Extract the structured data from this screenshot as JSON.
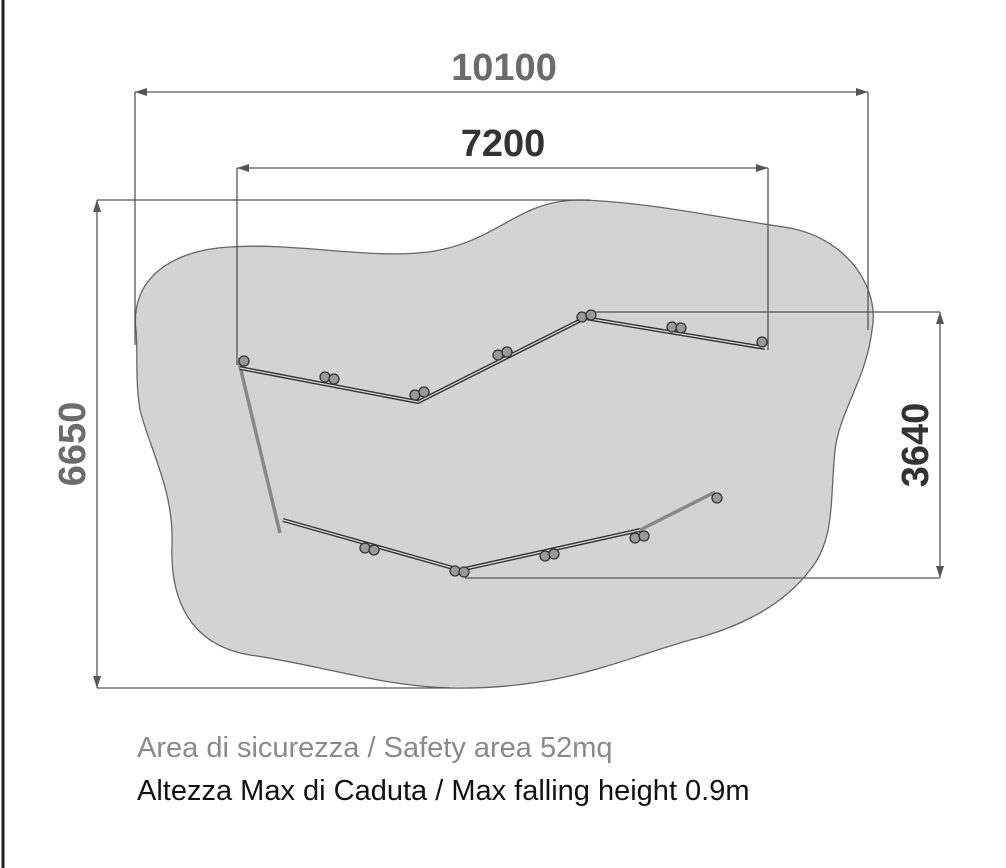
{
  "dimensions": {
    "overall_width": "10100",
    "inner_width": "7200",
    "overall_depth": "6650",
    "inner_depth": "3640"
  },
  "captions": {
    "safety_area": "Area di sicurezza / Safety area 52mq",
    "max_fall_height": "Altezza Max di Caduta / Max falling height 0.9m"
  }
}
